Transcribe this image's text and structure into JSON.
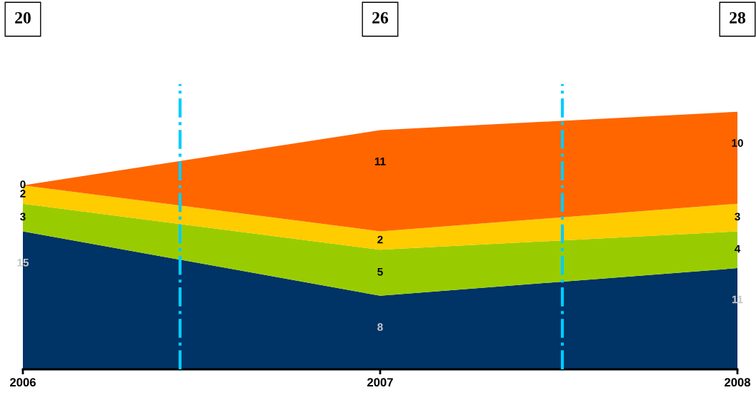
{
  "chart_data": {
    "type": "area",
    "stacked": true,
    "data_labels": true,
    "x": [
      2006,
      2007,
      2008
    ],
    "xlim": [
      2006,
      2008
    ],
    "xticks": [
      2006,
      2007,
      2008
    ],
    "ylim": [
      0,
      31
    ],
    "series": [
      {
        "color": "#003366",
        "values": [
          15,
          8,
          11
        ]
      },
      {
        "color": "#99cc00",
        "values": [
          3,
          5,
          4
        ]
      },
      {
        "color": "#ffcc00",
        "values": [
          2,
          2,
          3
        ]
      },
      {
        "color": "#ff6600",
        "values": [
          0,
          11,
          10
        ]
      }
    ],
    "annotations": [
      "20",
      "26",
      "28"
    ],
    "ref_lines": [
      {
        "axis": "x",
        "value": 2006.44,
        "color": "#00ccff",
        "line_style": "dashdot"
      },
      {
        "axis": "x",
        "value": 2007.51,
        "color": "#00ccff",
        "line_style": "dashdot"
      }
    ],
    "grid": false,
    "legend": false
  }
}
